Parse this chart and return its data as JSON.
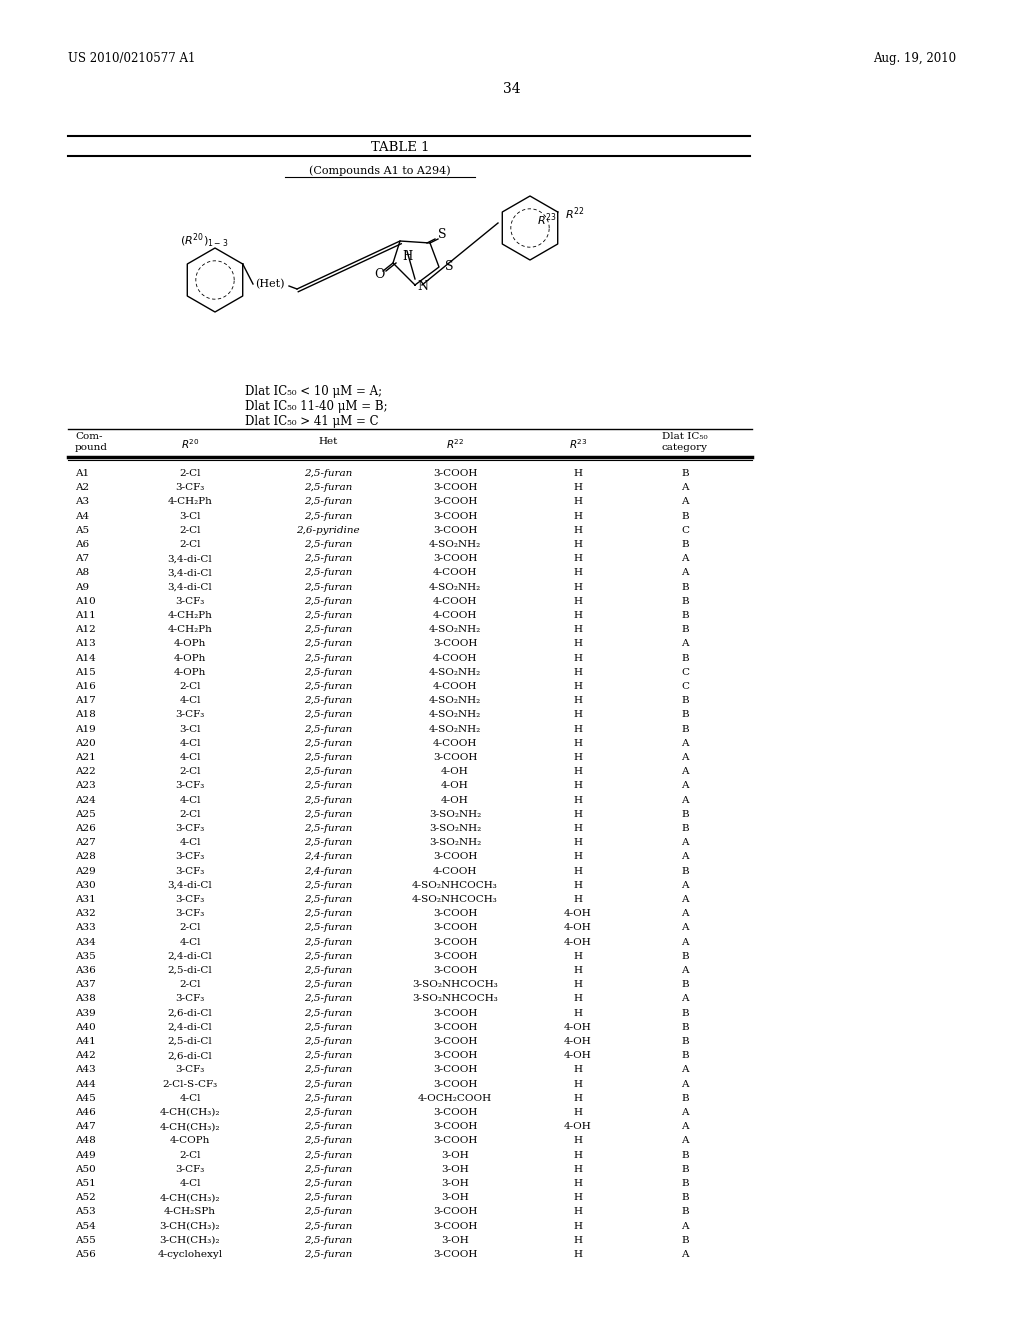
{
  "header_left": "US 2010/0210577 A1",
  "header_right": "Aug. 19, 2010",
  "page_number": "34",
  "table_title": "TABLE 1",
  "table_subtitle": "(Compounds A1 to A294)",
  "legend_lines": [
    "Dlat IC₅₀ < 10 μM = A;",
    "Dlat IC₅₀ 11-40 μM = B;",
    "Dlat IC₅₀ > 41 μM = C"
  ],
  "rows": [
    [
      "A1",
      "2-Cl",
      "2,5-furan",
      "3-COOH",
      "H",
      "B"
    ],
    [
      "A2",
      "3-CF3",
      "2,5-furan",
      "3-COOH",
      "H",
      "A"
    ],
    [
      "A3",
      "4-CH2Ph",
      "2,5-furan",
      "3-COOH",
      "H",
      "A"
    ],
    [
      "A4",
      "3-Cl",
      "2,5-furan",
      "3-COOH",
      "H",
      "B"
    ],
    [
      "A5",
      "2-Cl",
      "2,6-pyridine",
      "3-COOH",
      "H",
      "C"
    ],
    [
      "A6",
      "2-Cl",
      "2,5-furan",
      "4-SO2NH2",
      "H",
      "B"
    ],
    [
      "A7",
      "3,4-di-Cl",
      "2,5-furan",
      "3-COOH",
      "H",
      "A"
    ],
    [
      "A8",
      "3,4-di-Cl",
      "2,5-furan",
      "4-COOH",
      "H",
      "A"
    ],
    [
      "A9",
      "3,4-di-Cl",
      "2,5-furan",
      "4-SO2NH2",
      "H",
      "B"
    ],
    [
      "A10",
      "3-CF3",
      "2,5-furan",
      "4-COOH",
      "H",
      "B"
    ],
    [
      "A11",
      "4-CH2Ph",
      "2,5-furan",
      "4-COOH",
      "H",
      "B"
    ],
    [
      "A12",
      "4-CH2Ph",
      "2,5-furan",
      "4-SO2NH2",
      "H",
      "B"
    ],
    [
      "A13",
      "4-OPh",
      "2,5-furan",
      "3-COOH",
      "H",
      "A"
    ],
    [
      "A14",
      "4-OPh",
      "2,5-furan",
      "4-COOH",
      "H",
      "B"
    ],
    [
      "A15",
      "4-OPh",
      "2,5-furan",
      "4-SO2NH2",
      "H",
      "C"
    ],
    [
      "A16",
      "2-Cl",
      "2,5-furan",
      "4-COOH",
      "H",
      "C"
    ],
    [
      "A17",
      "4-Cl",
      "2,5-furan",
      "4-SO2NH2",
      "H",
      "B"
    ],
    [
      "A18",
      "3-CF3",
      "2,5-furan",
      "4-SO2NH2",
      "H",
      "B"
    ],
    [
      "A19",
      "3-Cl",
      "2,5-furan",
      "4-SO2NH2",
      "H",
      "B"
    ],
    [
      "A20",
      "4-Cl",
      "2,5-furan",
      "4-COOH",
      "H",
      "A"
    ],
    [
      "A21",
      "4-Cl",
      "2,5-furan",
      "3-COOH",
      "H",
      "A"
    ],
    [
      "A22",
      "2-Cl",
      "2,5-furan",
      "4-OH",
      "H",
      "A"
    ],
    [
      "A23",
      "3-CF3",
      "2,5-furan",
      "4-OH",
      "H",
      "A"
    ],
    [
      "A24",
      "4-Cl",
      "2,5-furan",
      "4-OH",
      "H",
      "A"
    ],
    [
      "A25",
      "2-Cl",
      "2,5-furan",
      "3-SO2NH2",
      "H",
      "B"
    ],
    [
      "A26",
      "3-CF3",
      "2,5-furan",
      "3-SO2NH2",
      "H",
      "B"
    ],
    [
      "A27",
      "4-Cl",
      "2,5-furan",
      "3-SO2NH2",
      "H",
      "A"
    ],
    [
      "A28",
      "3-CF3",
      "2,4-furan",
      "3-COOH",
      "H",
      "A"
    ],
    [
      "A29",
      "3-CF3",
      "2,4-furan",
      "4-COOH",
      "H",
      "B"
    ],
    [
      "A30",
      "3,4-di-Cl",
      "2,5-furan",
      "4-SO2NHCOCH3",
      "H",
      "A"
    ],
    [
      "A31",
      "3-CF3",
      "2,5-furan",
      "4-SO2NHCOCH3",
      "H",
      "A"
    ],
    [
      "A32",
      "3-CF3",
      "2,5-furan",
      "3-COOH",
      "4-OH",
      "A"
    ],
    [
      "A33",
      "2-Cl",
      "2,5-furan",
      "3-COOH",
      "4-OH",
      "A"
    ],
    [
      "A34",
      "4-Cl",
      "2,5-furan",
      "3-COOH",
      "4-OH",
      "A"
    ],
    [
      "A35",
      "2,4-di-Cl",
      "2,5-furan",
      "3-COOH",
      "H",
      "B"
    ],
    [
      "A36",
      "2,5-di-Cl",
      "2,5-furan",
      "3-COOH",
      "H",
      "A"
    ],
    [
      "A37",
      "2-Cl",
      "2,5-furan",
      "3-SO2NHCOCH3",
      "H",
      "B"
    ],
    [
      "A38",
      "3-CF3",
      "2,5-furan",
      "3-SO2NHCOCH3",
      "H",
      "A"
    ],
    [
      "A39",
      "2,6-di-Cl",
      "2,5-furan",
      "3-COOH",
      "H",
      "B"
    ],
    [
      "A40",
      "2,4-di-Cl",
      "2,5-furan",
      "3-COOH",
      "4-OH",
      "B"
    ],
    [
      "A41",
      "2,5-di-Cl",
      "2,5-furan",
      "3-COOH",
      "4-OH",
      "B"
    ],
    [
      "A42",
      "2,6-di-Cl",
      "2,5-furan",
      "3-COOH",
      "4-OH",
      "B"
    ],
    [
      "A43",
      "3-CF3",
      "2,5-furan",
      "3-COOH",
      "H",
      "A"
    ],
    [
      "A44",
      "2-Cl-S-CF3",
      "2,5-furan",
      "3-COOH",
      "H",
      "A"
    ],
    [
      "A45",
      "4-Cl",
      "2,5-furan",
      "4-OCH2COOH",
      "H",
      "B"
    ],
    [
      "A46",
      "4-CH(CH3)2",
      "2,5-furan",
      "3-COOH",
      "H",
      "A"
    ],
    [
      "A47",
      "4-CH(CH3)2",
      "2,5-furan",
      "3-COOH",
      "4-OH",
      "A"
    ],
    [
      "A48",
      "4-COPh",
      "2,5-furan",
      "3-COOH",
      "H",
      "A"
    ],
    [
      "A49",
      "2-Cl",
      "2,5-furan",
      "3-OH",
      "H",
      "B"
    ],
    [
      "A50",
      "3-CF3",
      "2,5-furan",
      "3-OH",
      "H",
      "B"
    ],
    [
      "A51",
      "4-Cl",
      "2,5-furan",
      "3-OH",
      "H",
      "B"
    ],
    [
      "A52",
      "4-CH(CH3)2",
      "2,5-furan",
      "3-OH",
      "H",
      "B"
    ],
    [
      "A53",
      "4-CH2SPh",
      "2,5-furan",
      "3-COOH",
      "H",
      "B"
    ],
    [
      "A54",
      "3-CH(CH3)2",
      "2,5-furan",
      "3-COOH",
      "H",
      "A"
    ],
    [
      "A55",
      "3-CH(CH3)2",
      "2,5-furan",
      "3-OH",
      "H",
      "B"
    ],
    [
      "A56",
      "4-cyclohexyl",
      "2,5-furan",
      "3-COOH",
      "H",
      "A"
    ]
  ],
  "bg_color": "#ffffff",
  "text_color": "#000000"
}
